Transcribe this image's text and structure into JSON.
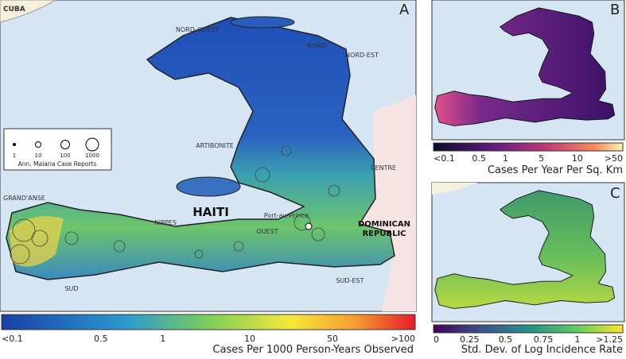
{
  "panel_a": {
    "letter": "A",
    "places": {
      "cuba": "CUBA",
      "nord_ouest": "NORD-OUEST",
      "nord": "NORD",
      "nord_est": "NORD-EST",
      "artibonite": "ARTIBONITE",
      "centre": "CENTRE",
      "grand_anse": "GRAND'ANSE",
      "nippes": "NIPPES",
      "haiti": "HAITI",
      "port_au_prince": "Port-au-Prince",
      "ouest": "OUEST",
      "dominican_republic": [
        "DOMINICAN",
        "REPUBLIC"
      ],
      "sud": "SUD",
      "sud_est": "SUD-EST"
    },
    "legend": {
      "sizes": [
        "1",
        "10",
        "100",
        "1000"
      ],
      "title": "Ann. Malaria Case Reports"
    },
    "colorbar": {
      "ticks": [
        "<0.1",
        "0.5",
        "1",
        "10",
        "50",
        ">100"
      ],
      "title": "Cases Per 1000 Person-Years Observed"
    }
  },
  "panel_b": {
    "letter": "B",
    "colorbar": {
      "ticks": [
        "<0.1",
        "0.5",
        "1",
        "5",
        "10",
        ">50"
      ],
      "title": "Cases Per Year Per Sq. Km"
    }
  },
  "panel_c": {
    "letter": "C",
    "colorbar": {
      "ticks": [
        "0",
        "0.25",
        "0.5",
        "0.75",
        "1",
        ">1.25"
      ],
      "title": "Std. Dev. of Log Incidence Rate"
    }
  }
}
